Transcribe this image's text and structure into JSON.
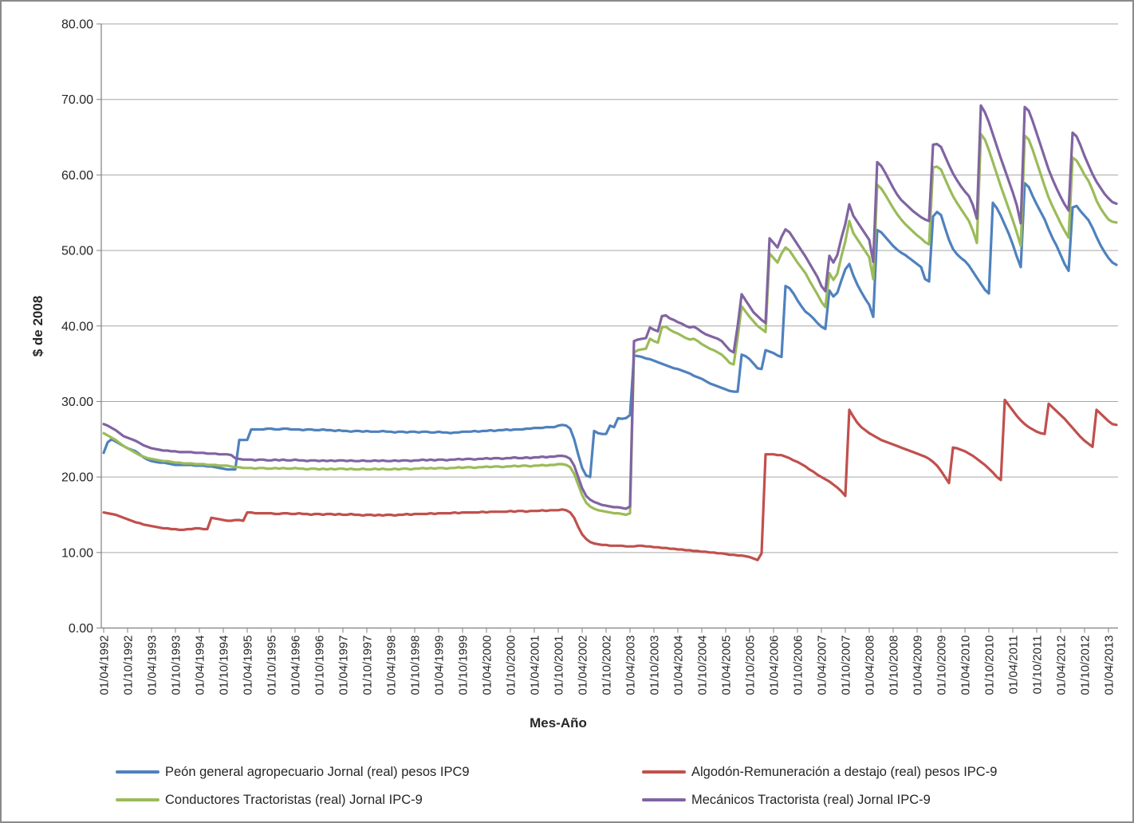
{
  "chart_data": {
    "type": "line",
    "title": "",
    "xlabel": "Mes-Año",
    "ylabel": "$ de 2008",
    "ylim": [
      0,
      80
    ],
    "ytick_step": 10,
    "ytick_labels": [
      "0.00",
      "10.00",
      "20.00",
      "30.00",
      "40.00",
      "50.00",
      "60.00",
      "70.00",
      "80.00"
    ],
    "grid": "horizontal-only",
    "legend_position": "bottom-two-columns",
    "x_frequency": "monthly",
    "x_start": "04/1992",
    "x_end": "06/2013",
    "xtick_every_n_months": 6,
    "xtick_labels": [
      "01/04/1992",
      "01/10/1992",
      "01/04/1993",
      "01/10/1993",
      "01/04/1994",
      "01/10/1994",
      "01/04/1995",
      "01/10/1995",
      "01/04/1996",
      "01/10/1996",
      "01/04/1997",
      "01/10/1997",
      "01/04/1998",
      "01/10/1998",
      "01/04/1999",
      "01/10/1999",
      "01/04/2000",
      "01/10/2000",
      "01/04/2001",
      "01/10/2001",
      "01/04/2002",
      "01/10/2002",
      "01/04/2003",
      "01/10/2003",
      "01/04/2004",
      "01/10/2004",
      "01/04/2005",
      "01/10/2005",
      "01/04/2006",
      "01/10/2006",
      "01/04/2007",
      "01/10/2007",
      "01/04/2008",
      "01/10/2008",
      "01/04/2009",
      "01/10/2009",
      "01/04/2010",
      "01/10/2010",
      "01/04/2011",
      "01/10/2011",
      "01/04/2012",
      "01/10/2012",
      "01/04/2013"
    ],
    "axis_color": "#808080",
    "grid_color": "#a6a6a6",
    "series": [
      {
        "name": "Peón general agropecuario Jornal (real) pesos IPC9",
        "color": "#4F81BD",
        "values": [
          23.2,
          24.6,
          25.0,
          24.7,
          24.4,
          24.1,
          23.8,
          23.6,
          23.4,
          23.0,
          22.6,
          22.3,
          22.1,
          22.0,
          21.9,
          21.9,
          21.8,
          21.7,
          21.6,
          21.6,
          21.6,
          21.6,
          21.6,
          21.5,
          21.5,
          21.5,
          21.4,
          21.4,
          21.3,
          21.2,
          21.1,
          21.0,
          21.0,
          21.0,
          24.9,
          24.9,
          24.9,
          26.3,
          26.3,
          26.3,
          26.3,
          26.4,
          26.4,
          26.3,
          26.3,
          26.4,
          26.4,
          26.3,
          26.3,
          26.3,
          26.2,
          26.3,
          26.3,
          26.2,
          26.2,
          26.3,
          26.2,
          26.2,
          26.1,
          26.2,
          26.1,
          26.1,
          26.0,
          26.1,
          26.1,
          26.0,
          26.1,
          26.0,
          26.0,
          26.0,
          26.1,
          26.0,
          26.0,
          25.9,
          26.0,
          26.0,
          25.9,
          26.0,
          26.0,
          25.9,
          26.0,
          26.0,
          25.9,
          25.9,
          26.0,
          25.9,
          25.9,
          25.8,
          25.9,
          25.9,
          26.0,
          26.0,
          26.0,
          26.1,
          26.0,
          26.1,
          26.1,
          26.2,
          26.1,
          26.2,
          26.2,
          26.3,
          26.2,
          26.3,
          26.3,
          26.3,
          26.4,
          26.4,
          26.5,
          26.5,
          26.5,
          26.6,
          26.6,
          26.6,
          26.8,
          26.9,
          26.8,
          26.4,
          25.0,
          23.0,
          21.2,
          20.2,
          20.0,
          26.1,
          25.8,
          25.7,
          25.7,
          26.8,
          26.6,
          27.8,
          27.7,
          27.8,
          28.2,
          36.1,
          36.0,
          35.9,
          35.7,
          35.6,
          35.4,
          35.2,
          35.0,
          34.8,
          34.6,
          34.4,
          34.3,
          34.1,
          33.9,
          33.7,
          33.4,
          33.2,
          33.0,
          32.7,
          32.4,
          32.2,
          32.0,
          31.8,
          31.6,
          31.4,
          31.3,
          31.3,
          36.2,
          36.0,
          35.6,
          35.0,
          34.4,
          34.3,
          36.8,
          36.6,
          36.4,
          36.1,
          35.9,
          45.3,
          45.0,
          44.3,
          43.4,
          42.6,
          41.9,
          41.5,
          41.0,
          40.4,
          39.9,
          39.6,
          44.7,
          43.9,
          44.4,
          46.0,
          47.5,
          48.2,
          46.7,
          45.5,
          44.5,
          43.6,
          42.8,
          41.2,
          52.7,
          52.4,
          51.8,
          51.2,
          50.6,
          50.1,
          49.7,
          49.4,
          49.0,
          48.6,
          48.2,
          47.8,
          46.2,
          45.9,
          54.5,
          55.1,
          54.7,
          53.0,
          51.4,
          50.2,
          49.5,
          49.0,
          48.6,
          48.0,
          47.2,
          46.4,
          45.6,
          44.8,
          44.3,
          56.3,
          55.6,
          54.6,
          53.4,
          52.2,
          50.8,
          49.2,
          47.8,
          58.9,
          58.4,
          57.2,
          56.1,
          55.1,
          54.1,
          52.8,
          51.6,
          50.6,
          49.4,
          48.2,
          47.3,
          55.7,
          55.9,
          55.2,
          54.6,
          54.0,
          53.0,
          51.8,
          50.7,
          49.8,
          49.0,
          48.4,
          48.1
        ]
      },
      {
        "name": "Algodón-Remuneración a destajo (real) pesos IPC-9",
        "color": "#C0504D",
        "values": [
          15.3,
          15.2,
          15.1,
          15.0,
          14.8,
          14.6,
          14.4,
          14.2,
          14.0,
          13.9,
          13.7,
          13.6,
          13.5,
          13.4,
          13.3,
          13.2,
          13.2,
          13.1,
          13.1,
          13.0,
          13.0,
          13.1,
          13.1,
          13.2,
          13.2,
          13.1,
          13.1,
          14.6,
          14.5,
          14.4,
          14.3,
          14.2,
          14.2,
          14.3,
          14.3,
          14.2,
          15.3,
          15.3,
          15.2,
          15.2,
          15.2,
          15.2,
          15.2,
          15.1,
          15.1,
          15.2,
          15.2,
          15.1,
          15.1,
          15.2,
          15.1,
          15.1,
          15.0,
          15.1,
          15.1,
          15.0,
          15.1,
          15.1,
          15.0,
          15.1,
          15.0,
          15.0,
          15.1,
          15.0,
          15.0,
          14.9,
          15.0,
          15.0,
          14.9,
          15.0,
          14.9,
          15.0,
          15.0,
          14.9,
          15.0,
          15.0,
          15.1,
          15.0,
          15.1,
          15.1,
          15.1,
          15.1,
          15.2,
          15.1,
          15.2,
          15.2,
          15.2,
          15.2,
          15.3,
          15.2,
          15.3,
          15.3,
          15.3,
          15.3,
          15.3,
          15.4,
          15.3,
          15.4,
          15.4,
          15.4,
          15.4,
          15.4,
          15.5,
          15.4,
          15.5,
          15.5,
          15.4,
          15.5,
          15.5,
          15.5,
          15.6,
          15.5,
          15.6,
          15.6,
          15.6,
          15.7,
          15.6,
          15.3,
          14.6,
          13.4,
          12.4,
          11.8,
          11.4,
          11.2,
          11.1,
          11.0,
          11.0,
          10.9,
          10.9,
          10.9,
          10.9,
          10.8,
          10.8,
          10.8,
          10.9,
          10.9,
          10.8,
          10.8,
          10.7,
          10.7,
          10.6,
          10.6,
          10.5,
          10.5,
          10.4,
          10.4,
          10.3,
          10.3,
          10.2,
          10.2,
          10.1,
          10.1,
          10.0,
          10.0,
          9.9,
          9.9,
          9.8,
          9.7,
          9.7,
          9.6,
          9.6,
          9.5,
          9.4,
          9.2,
          9.0,
          9.9,
          23.0,
          23.0,
          23.0,
          22.9,
          22.9,
          22.7,
          22.5,
          22.2,
          22.0,
          21.7,
          21.4,
          21.0,
          20.7,
          20.3,
          20.0,
          19.7,
          19.4,
          19.0,
          18.6,
          18.1,
          17.5,
          28.9,
          28.0,
          27.2,
          26.6,
          26.2,
          25.8,
          25.5,
          25.2,
          24.9,
          24.7,
          24.5,
          24.3,
          24.1,
          23.9,
          23.7,
          23.5,
          23.3,
          23.1,
          22.9,
          22.7,
          22.4,
          22.0,
          21.5,
          20.8,
          20.0,
          19.2,
          23.9,
          23.8,
          23.6,
          23.4,
          23.1,
          22.8,
          22.4,
          22.0,
          21.6,
          21.1,
          20.6,
          20.0,
          19.6,
          30.2,
          29.5,
          28.8,
          28.1,
          27.5,
          27.0,
          26.6,
          26.3,
          26.0,
          25.8,
          25.7,
          29.7,
          29.2,
          28.7,
          28.2,
          27.7,
          27.1,
          26.5,
          25.9,
          25.3,
          24.8,
          24.4,
          24.0,
          28.9,
          28.4,
          27.9,
          27.4,
          27.0,
          26.9
        ]
      },
      {
        "name": "Conductores Tractoristas (real) Jornal IPC-9",
        "color": "#9BBB59",
        "values": [
          25.8,
          25.5,
          25.2,
          24.9,
          24.5,
          24.1,
          23.8,
          23.5,
          23.2,
          22.9,
          22.7,
          22.5,
          22.4,
          22.3,
          22.2,
          22.1,
          22.1,
          22.0,
          21.9,
          21.9,
          21.8,
          21.8,
          21.8,
          21.7,
          21.7,
          21.7,
          21.6,
          21.6,
          21.6,
          21.5,
          21.5,
          21.5,
          21.4,
          21.3,
          21.3,
          21.2,
          21.2,
          21.2,
          21.1,
          21.2,
          21.2,
          21.1,
          21.1,
          21.2,
          21.1,
          21.2,
          21.1,
          21.1,
          21.2,
          21.1,
          21.1,
          21.0,
          21.1,
          21.1,
          21.0,
          21.1,
          21.0,
          21.1,
          21.0,
          21.1,
          21.1,
          21.0,
          21.1,
          21.0,
          21.0,
          21.1,
          21.0,
          21.0,
          21.1,
          21.0,
          21.1,
          21.0,
          21.0,
          21.1,
          21.0,
          21.1,
          21.1,
          21.0,
          21.1,
          21.1,
          21.2,
          21.1,
          21.2,
          21.1,
          21.2,
          21.2,
          21.1,
          21.2,
          21.2,
          21.3,
          21.2,
          21.3,
          21.3,
          21.2,
          21.3,
          21.3,
          21.4,
          21.3,
          21.4,
          21.4,
          21.3,
          21.4,
          21.4,
          21.5,
          21.4,
          21.5,
          21.5,
          21.4,
          21.5,
          21.5,
          21.6,
          21.5,
          21.6,
          21.6,
          21.7,
          21.7,
          21.6,
          21.3,
          20.4,
          19.0,
          17.6,
          16.6,
          16.1,
          15.8,
          15.6,
          15.5,
          15.4,
          15.3,
          15.2,
          15.2,
          15.1,
          15.0,
          15.2,
          36.5,
          36.8,
          36.9,
          37.0,
          38.3,
          38.0,
          37.8,
          39.8,
          39.9,
          39.5,
          39.2,
          39.0,
          38.7,
          38.4,
          38.2,
          38.3,
          38.0,
          37.6,
          37.3,
          37.0,
          36.8,
          36.5,
          36.2,
          35.7,
          35.1,
          34.9,
          38.5,
          42.6,
          41.9,
          41.2,
          40.6,
          40.0,
          39.6,
          39.2,
          49.6,
          49.0,
          48.4,
          49.6,
          50.4,
          50.0,
          49.2,
          48.4,
          47.7,
          47.0,
          46.0,
          45.1,
          44.2,
          43.2,
          42.5,
          47.0,
          46.1,
          46.9,
          49.2,
          51.2,
          53.9,
          52.3,
          51.5,
          50.7,
          49.9,
          49.1,
          46.2,
          58.7,
          58.2,
          57.4,
          56.5,
          55.6,
          54.8,
          54.1,
          53.5,
          53.0,
          52.5,
          52.0,
          51.6,
          51.1,
          50.8,
          61.0,
          61.1,
          60.7,
          59.5,
          58.3,
          57.2,
          56.3,
          55.5,
          54.7,
          53.9,
          52.6,
          51.0,
          65.4,
          64.7,
          63.3,
          61.7,
          60.1,
          58.5,
          57.0,
          55.5,
          54.0,
          52.4,
          50.6,
          65.2,
          64.7,
          63.3,
          61.7,
          60.1,
          58.5,
          57.0,
          55.8,
          54.7,
          53.6,
          52.6,
          51.7,
          62.3,
          61.9,
          61.0,
          60.0,
          59.2,
          58.0,
          56.6,
          55.6,
          54.8,
          54.1,
          53.8,
          53.7
        ]
      },
      {
        "name": "Mecánicos Tractorista (real) Jornal IPC-9",
        "color": "#8064A2",
        "values": [
          27.0,
          26.8,
          26.5,
          26.2,
          25.8,
          25.4,
          25.2,
          25.0,
          24.8,
          24.5,
          24.2,
          24.0,
          23.8,
          23.7,
          23.6,
          23.5,
          23.5,
          23.4,
          23.4,
          23.3,
          23.3,
          23.3,
          23.3,
          23.2,
          23.2,
          23.2,
          23.1,
          23.1,
          23.1,
          23.0,
          23.0,
          23.0,
          22.9,
          22.5,
          22.4,
          22.3,
          22.3,
          22.3,
          22.2,
          22.3,
          22.3,
          22.2,
          22.2,
          22.3,
          22.2,
          22.3,
          22.2,
          22.2,
          22.3,
          22.2,
          22.2,
          22.1,
          22.2,
          22.2,
          22.1,
          22.2,
          22.1,
          22.2,
          22.1,
          22.2,
          22.2,
          22.1,
          22.2,
          22.1,
          22.1,
          22.2,
          22.1,
          22.1,
          22.2,
          22.1,
          22.2,
          22.1,
          22.1,
          22.2,
          22.1,
          22.2,
          22.2,
          22.1,
          22.2,
          22.2,
          22.3,
          22.2,
          22.3,
          22.2,
          22.3,
          22.3,
          22.2,
          22.3,
          22.3,
          22.4,
          22.3,
          22.4,
          22.4,
          22.3,
          22.4,
          22.4,
          22.5,
          22.4,
          22.5,
          22.5,
          22.4,
          22.5,
          22.5,
          22.6,
          22.5,
          22.5,
          22.6,
          22.5,
          22.6,
          22.6,
          22.7,
          22.6,
          22.7,
          22.7,
          22.8,
          22.8,
          22.7,
          22.4,
          21.5,
          20.0,
          18.5,
          17.5,
          17.0,
          16.7,
          16.5,
          16.3,
          16.2,
          16.1,
          16.0,
          16.0,
          15.9,
          15.8,
          16.1,
          38.0,
          38.2,
          38.3,
          38.4,
          39.8,
          39.5,
          39.3,
          41.3,
          41.4,
          41.0,
          40.8,
          40.5,
          40.3,
          40.0,
          39.8,
          39.9,
          39.6,
          39.2,
          38.9,
          38.7,
          38.5,
          38.3,
          38.0,
          37.4,
          36.8,
          36.5,
          40.0,
          44.2,
          43.4,
          42.6,
          41.8,
          41.3,
          40.8,
          40.4,
          51.6,
          51.0,
          50.4,
          51.8,
          52.8,
          52.4,
          51.6,
          50.8,
          50.0,
          49.2,
          48.3,
          47.4,
          46.5,
          45.3,
          44.6,
          49.3,
          48.4,
          49.4,
          51.6,
          53.5,
          56.1,
          54.6,
          53.8,
          53.0,
          52.2,
          51.4,
          48.5,
          61.7,
          61.2,
          60.3,
          59.3,
          58.3,
          57.4,
          56.7,
          56.2,
          55.7,
          55.2,
          54.8,
          54.4,
          54.1,
          53.9,
          64.0,
          64.1,
          63.7,
          62.5,
          61.3,
          60.2,
          59.3,
          58.5,
          57.8,
          57.2,
          56.0,
          54.2,
          69.2,
          68.3,
          67.0,
          65.4,
          63.8,
          62.2,
          60.7,
          59.2,
          57.7,
          56.0,
          53.6,
          69.0,
          68.5,
          67.1,
          65.5,
          63.9,
          62.3,
          60.7,
          59.4,
          58.2,
          57.1,
          56.1,
          55.3,
          65.6,
          65.1,
          63.9,
          62.5,
          61.3,
          60.1,
          59.1,
          58.3,
          57.5,
          56.9,
          56.4,
          56.2
        ]
      }
    ]
  }
}
